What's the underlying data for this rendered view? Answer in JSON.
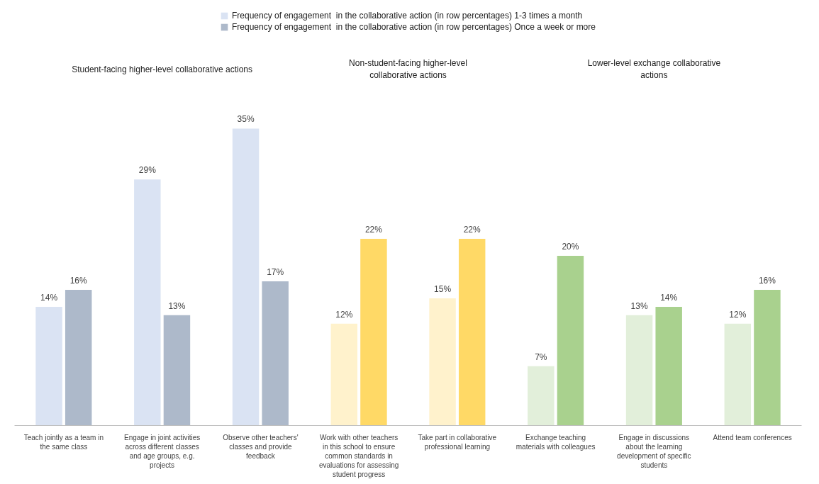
{
  "chart_data": {
    "type": "bar",
    "categories": [
      "Teach jointly as a team in the same class",
      "Engage in joint activities across different classes and age groups, e.g. projects",
      "Observe other teachers' classes and provide feedback",
      "Work with other teachers in this school to ensure common standards in evaluations for assessing student progress",
      "Take part in collaborative professional learning",
      "Exchange teaching materials with colleagues",
      "Engage in discussions about the learning development of specific students",
      "Attend team conferences"
    ],
    "series": [
      {
        "name": "Frequency of engagement  in the collaborative action (in row percentages) 1-3 times a month",
        "colors": [
          "#dae3f3",
          "#dae3f3",
          "#dae3f3",
          "#fff2cc",
          "#fff2cc",
          "#e2efda",
          "#e2efda",
          "#e2efda"
        ],
        "values": [
          14,
          29,
          35,
          12,
          15,
          7,
          13,
          12
        ],
        "value_labels": [
          "14%",
          "29%",
          "35%",
          "12%",
          "15%",
          "7%",
          "13%",
          "12%"
        ]
      },
      {
        "name": "Frequency of engagement  in the collaborative action (in row percentages) Once a week or more",
        "colors": [
          "#adb9ca",
          "#adb9ca",
          "#adb9ca",
          "#ffd966",
          "#ffd966",
          "#a9d18e",
          "#a9d18e",
          "#a9d18e"
        ],
        "values": [
          16,
          13,
          17,
          22,
          22,
          20,
          14,
          16
        ],
        "value_labels": [
          "16%",
          "13%",
          "17%",
          "22%",
          "22%",
          "20%",
          "14%",
          "16%"
        ]
      }
    ],
    "annotations": [
      "Student-facing higher-level collaborative actions",
      "Non-student-facing higher-level collaborative actions",
      "Lower-level exchange collaborative actions"
    ],
    "legend": "top"
  }
}
